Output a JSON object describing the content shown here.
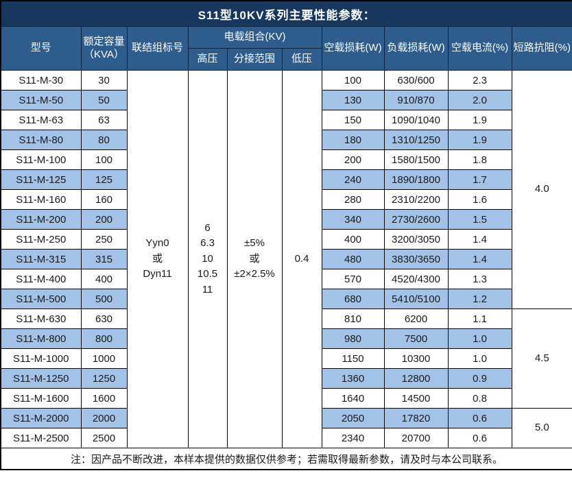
{
  "title": "S11型10KV系列主要性能参数：",
  "table": {
    "columns": {
      "model": "型号",
      "capacity_line1": "额定容量",
      "capacity_line2": "（KVA）",
      "connection": "联结组标号",
      "voltage_group": "电载组合(KV)",
      "hv": "高压",
      "tap_range": "分接范围",
      "lv": "低压",
      "no_load_loss": "空载损耗(W)",
      "load_loss": "负载损耗(W)",
      "no_load_current": "空载电流(%)",
      "impedance": "短路抗阻(%)"
    },
    "merged": {
      "connection": "Yyn0\n或\nDyn11",
      "hv": "6\n6.3\n10\n10.5\n11",
      "tap_range": "±5%\n或\n±2×2.5%",
      "lv": "0.4",
      "impedance_groups": [
        {
          "value": "4.0",
          "rows": 12
        },
        {
          "value": "4.5",
          "rows": 5
        },
        {
          "value": "5.0",
          "rows": 2
        }
      ]
    },
    "rows": [
      {
        "model": "S11-M-30",
        "capacity": "30",
        "no_load_loss": "100",
        "load_loss": "630/600",
        "no_load_current": "2.3"
      },
      {
        "model": "S11-M-50",
        "capacity": "50",
        "no_load_loss": "130",
        "load_loss": "910/870",
        "no_load_current": "2.0"
      },
      {
        "model": "S11-M-63",
        "capacity": "63",
        "no_load_loss": "150",
        "load_loss": "1090/1040",
        "no_load_current": "1.9"
      },
      {
        "model": "S11-M-80",
        "capacity": "80",
        "no_load_loss": "180",
        "load_loss": "1310/1250",
        "no_load_current": "1.9"
      },
      {
        "model": "S11-M-100",
        "capacity": "100",
        "no_load_loss": "200",
        "load_loss": "1580/1500",
        "no_load_current": "1.8"
      },
      {
        "model": "S11-M-125",
        "capacity": "125",
        "no_load_loss": "240",
        "load_loss": "1890/1800",
        "no_load_current": "1.7"
      },
      {
        "model": "S11-M-160",
        "capacity": "160",
        "no_load_loss": "280",
        "load_loss": "2310/2200",
        "no_load_current": "1.6"
      },
      {
        "model": "S11-M-200",
        "capacity": "200",
        "no_load_loss": "340",
        "load_loss": "2730/2600",
        "no_load_current": "1.5"
      },
      {
        "model": "S11-M-250",
        "capacity": "250",
        "no_load_loss": "400",
        "load_loss": "3200/3050",
        "no_load_current": "1.4"
      },
      {
        "model": "S11-M-315",
        "capacity": "315",
        "no_load_loss": "480",
        "load_loss": "3830/3650",
        "no_load_current": "1.4"
      },
      {
        "model": "S11-M-400",
        "capacity": "400",
        "no_load_loss": "570",
        "load_loss": "4520/4300",
        "no_load_current": "1.3"
      },
      {
        "model": "S11-M-500",
        "capacity": "500",
        "no_load_loss": "680",
        "load_loss": "5410/5100",
        "no_load_current": "1.2"
      },
      {
        "model": "S11-M-630",
        "capacity": "630",
        "no_load_loss": "810",
        "load_loss": "6200",
        "no_load_current": "1.1"
      },
      {
        "model": "S11-M-800",
        "capacity": "800",
        "no_load_loss": "980",
        "load_loss": "7500",
        "no_load_current": "1.0"
      },
      {
        "model": "S11-M-1000",
        "capacity": "1000",
        "no_load_loss": "1150",
        "load_loss": "10300",
        "no_load_current": "1.0"
      },
      {
        "model": "S11-M-1250",
        "capacity": "1250",
        "no_load_loss": "1360",
        "load_loss": "12800",
        "no_load_current": "0.9"
      },
      {
        "model": "S11-M-1600",
        "capacity": "1600",
        "no_load_loss": "1640",
        "load_loss": "14500",
        "no_load_current": "0.8"
      },
      {
        "model": "S11-M-2000",
        "capacity": "2000",
        "no_load_loss": "2050",
        "load_loss": "17820",
        "no_load_current": "0.6"
      },
      {
        "model": "S11-M-2500",
        "capacity": "2500",
        "no_load_loss": "2340",
        "load_loss": "20700",
        "no_load_current": "0.6"
      }
    ]
  },
  "footer_note": "注：因产品不断改进，本样本提供的数据仅供参考；若需取得最新参数，请及时与本公司联系。",
  "colors": {
    "title_bg": "#17375E",
    "header_bg": "#2E5C8C",
    "header_border": "#0C2340",
    "stripe_bg": "#A3C2E8",
    "border": "#000000",
    "text": "#1A1A1A",
    "header_text": "#FFFFFF"
  }
}
